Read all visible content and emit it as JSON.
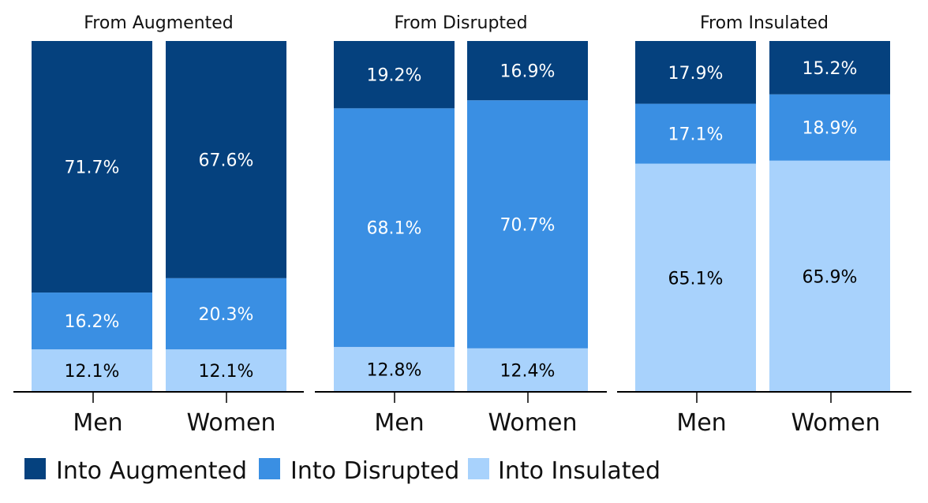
{
  "colors": {
    "into_augmented": "#05417E",
    "into_disrupted": "#3A8FE3",
    "into_insulated": "#A8D2FC",
    "axis": "#000000",
    "label_dark_bg": "#ffffff",
    "label_light_bg": "#000000"
  },
  "chart_data": {
    "type": "bar",
    "stacked": true,
    "panels": [
      {
        "title": "From Augmented",
        "categories": [
          "Men",
          "Women"
        ],
        "series": [
          {
            "name": "Into Insulated",
            "values": [
              12.1,
              12.1
            ],
            "labels": [
              "12.1%",
              "12.1%"
            ]
          },
          {
            "name": "Into Disrupted",
            "values": [
              16.2,
              20.3
            ],
            "labels": [
              "16.2%",
              "20.3%"
            ]
          },
          {
            "name": "Into Augmented",
            "values": [
              71.7,
              67.6
            ],
            "labels": [
              "71.7%",
              "67.6%"
            ]
          }
        ]
      },
      {
        "title": "From Disrupted",
        "categories": [
          "Men",
          "Women"
        ],
        "series": [
          {
            "name": "Into Insulated",
            "values": [
              12.8,
              12.4
            ],
            "labels": [
              "12.8%",
              "12.4%"
            ]
          },
          {
            "name": "Into Disrupted",
            "values": [
              68.1,
              70.7
            ],
            "labels": [
              "68.1%",
              "70.7%"
            ]
          },
          {
            "name": "Into Augmented",
            "values": [
              19.2,
              16.9
            ],
            "labels": [
              "19.2%",
              "16.9%"
            ]
          }
        ]
      },
      {
        "title": "From Insulated",
        "categories": [
          "Men",
          "Women"
        ],
        "series": [
          {
            "name": "Into Insulated",
            "values": [
              65.1,
              65.9
            ],
            "labels": [
              "65.1%",
              "65.9%"
            ]
          },
          {
            "name": "Into Disrupted",
            "values": [
              17.1,
              18.9
            ],
            "labels": [
              "17.1%",
              "18.9%"
            ]
          },
          {
            "name": "Into Augmented",
            "values": [
              17.9,
              15.2
            ],
            "labels": [
              "17.9%",
              "15.2%"
            ]
          }
        ]
      }
    ],
    "ylim": [
      0,
      100
    ],
    "grid": false,
    "legend": {
      "position": "bottom-left",
      "entries": [
        {
          "label": "Into Augmented",
          "color": "#05417E"
        },
        {
          "label": "Into Disrupted",
          "color": "#3A8FE3"
        },
        {
          "label": "Into Insulated",
          "color": "#A8D2FC"
        }
      ]
    }
  }
}
